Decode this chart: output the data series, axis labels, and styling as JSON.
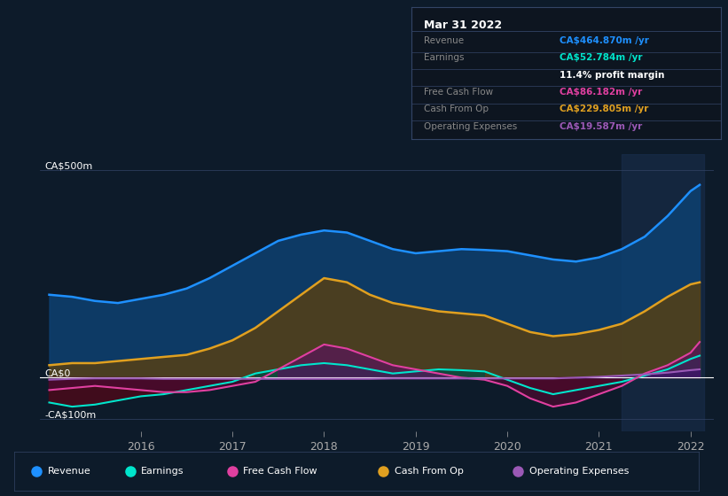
{
  "bg_color": "#0d1b2a",
  "plot_bg_color": "#0d1b2a",
  "ylabel_top": "CA$500m",
  "ylabel_zero": "CA$0",
  "ylabel_bottom": "-CA$100m",
  "x_ticks": [
    2016,
    2017,
    2018,
    2019,
    2020,
    2021,
    2022
  ],
  "ylim": [
    -130,
    540
  ],
  "colors": {
    "revenue": "#1e90ff",
    "earnings": "#00e5cc",
    "free_cash_flow": "#e040a0",
    "cash_from_op": "#e0a020",
    "operating_expenses": "#9b59b6"
  },
  "highlight_x_start": 2021.25,
  "info_box": {
    "title": "Mar 31 2022",
    "rows": [
      {
        "label": "Revenue",
        "value": "CA$464.870m /yr",
        "color": "#1e90ff"
      },
      {
        "label": "Earnings",
        "value": "CA$52.784m /yr",
        "color": "#00e5cc"
      },
      {
        "label": "",
        "value": "11.4% profit margin",
        "color": "#ffffff"
      },
      {
        "label": "Free Cash Flow",
        "value": "CA$86.182m /yr",
        "color": "#e040a0"
      },
      {
        "label": "Cash From Op",
        "value": "CA$229.805m /yr",
        "color": "#e0a020"
      },
      {
        "label": "Operating Expenses",
        "value": "CA$19.587m /yr",
        "color": "#9b59b6"
      }
    ]
  },
  "legend_items": [
    {
      "name": "Revenue",
      "color": "#1e90ff"
    },
    {
      "name": "Earnings",
      "color": "#00e5cc"
    },
    {
      "name": "Free Cash Flow",
      "color": "#e040a0"
    },
    {
      "name": "Cash From Op",
      "color": "#e0a020"
    },
    {
      "name": "Operating Expenses",
      "color": "#9b59b6"
    }
  ],
  "x": [
    2015.0,
    2015.25,
    2015.5,
    2015.75,
    2016.0,
    2016.25,
    2016.5,
    2016.75,
    2017.0,
    2017.25,
    2017.5,
    2017.75,
    2018.0,
    2018.25,
    2018.5,
    2018.75,
    2019.0,
    2019.25,
    2019.5,
    2019.75,
    2020.0,
    2020.25,
    2020.5,
    2020.75,
    2021.0,
    2021.25,
    2021.5,
    2021.75,
    2022.0,
    2022.1
  ],
  "revenue": [
    200,
    195,
    185,
    180,
    190,
    200,
    215,
    240,
    270,
    300,
    330,
    345,
    355,
    350,
    330,
    310,
    300,
    305,
    310,
    308,
    305,
    295,
    285,
    280,
    290,
    310,
    340,
    390,
    450,
    465
  ],
  "earnings": [
    -60,
    -70,
    -65,
    -55,
    -45,
    -40,
    -30,
    -20,
    -10,
    10,
    20,
    30,
    35,
    30,
    20,
    10,
    15,
    20,
    18,
    15,
    -5,
    -25,
    -40,
    -30,
    -20,
    -10,
    5,
    20,
    45,
    53
  ],
  "free_cash_flow": [
    -30,
    -25,
    -20,
    -25,
    -30,
    -35,
    -35,
    -30,
    -20,
    -10,
    20,
    50,
    80,
    70,
    50,
    30,
    20,
    10,
    0,
    -5,
    -20,
    -50,
    -70,
    -60,
    -40,
    -20,
    10,
    30,
    60,
    86
  ],
  "cash_from_op": [
    30,
    35,
    35,
    40,
    45,
    50,
    55,
    70,
    90,
    120,
    160,
    200,
    240,
    230,
    200,
    180,
    170,
    160,
    155,
    150,
    130,
    110,
    100,
    105,
    115,
    130,
    160,
    195,
    225,
    230
  ],
  "operating_expenses": [
    -5,
    -3,
    -2,
    -2,
    -2,
    -3,
    -3,
    -3,
    -3,
    -3,
    -3,
    -3,
    -3,
    -3,
    -3,
    -2,
    -2,
    -2,
    -2,
    -2,
    -2,
    -2,
    -2,
    0,
    2,
    5,
    8,
    12,
    18,
    20
  ]
}
